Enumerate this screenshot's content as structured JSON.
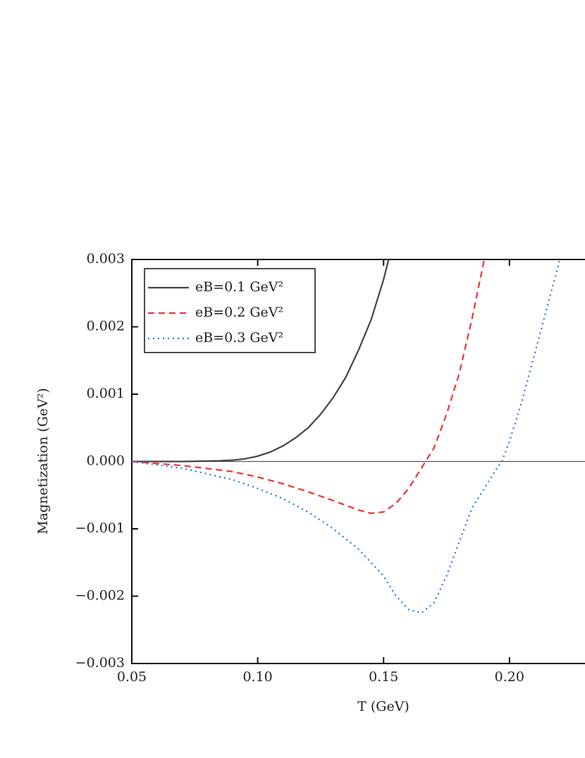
{
  "chart_data": {
    "type": "line",
    "xlabel": "T (GeV)",
    "ylabel": "Magnetization (GeV²)",
    "xlim": [
      0.05,
      0.23
    ],
    "ylim": [
      -0.003,
      0.003
    ],
    "xticks": [
      0.05,
      {
        "value": 0.1,
        "label": "0.10"
      },
      0.15,
      {
        "value": 0.2,
        "label": "0.20"
      }
    ],
    "yticks": [
      {
        "value": -0.003,
        "label": "−0.003"
      },
      {
        "value": -0.002,
        "label": "−0.002"
      },
      {
        "value": -0.001,
        "label": "−0.001"
      },
      {
        "value": 0,
        "label": "0.000"
      },
      0.001,
      0.002,
      0.003
    ],
    "legend": "upper left",
    "series": [
      {
        "name": "eB=0.1 GeV²",
        "color": "#444444",
        "dash": "solid",
        "x": [
          0.05,
          0.07,
          0.085,
          0.09,
          0.095,
          0.1,
          0.105,
          0.11,
          0.115,
          0.12,
          0.125,
          0.13,
          0.135,
          0.14,
          0.145,
          0.15,
          0.152
        ],
        "values": [
          0,
          0,
          1e-05,
          2e-05,
          4e-05,
          8e-05,
          0.00014,
          0.00023,
          0.00035,
          0.0005,
          0.0007,
          0.00095,
          0.00125,
          0.00165,
          0.0021,
          0.0027,
          0.003
        ]
      },
      {
        "name": "eB=0.2 GeV²",
        "color": "#ee3333",
        "dash": "dashed",
        "x": [
          0.05,
          0.07,
          0.09,
          0.1,
          0.11,
          0.12,
          0.13,
          0.14,
          0.145,
          0.15,
          0.155,
          0.16,
          0.165,
          0.17,
          0.175,
          0.18,
          0.185,
          0.19
        ],
        "values": [
          0,
          -6e-05,
          -0.00015,
          -0.00023,
          -0.00033,
          -0.00045,
          -0.00058,
          -0.00072,
          -0.00077,
          -0.00075,
          -0.00062,
          -0.0004,
          -0.0001,
          0.0002,
          0.0007,
          0.0013,
          0.0021,
          0.003
        ]
      },
      {
        "name": "eB=0.3 GeV²",
        "color": "#2277dd",
        "dash": "dotted",
        "x": [
          0.05,
          0.07,
          0.09,
          0.1,
          0.11,
          0.12,
          0.13,
          0.14,
          0.15,
          0.155,
          0.16,
          0.165,
          0.17,
          0.175,
          0.18,
          0.185,
          0.19,
          0.195,
          0.197,
          0.2,
          0.205,
          0.21,
          0.215,
          0.22
        ],
        "values": [
          0,
          -0.0001,
          -0.00027,
          -0.0004,
          -0.00055,
          -0.00075,
          -0.001,
          -0.0013,
          -0.0017,
          -0.002,
          -0.0022,
          -0.00225,
          -0.0021,
          -0.0017,
          -0.0012,
          -0.0007,
          -0.0004,
          -0.0001,
          0,
          0.0003,
          0.0009,
          0.0016,
          0.0023,
          0.003
        ]
      }
    ]
  }
}
